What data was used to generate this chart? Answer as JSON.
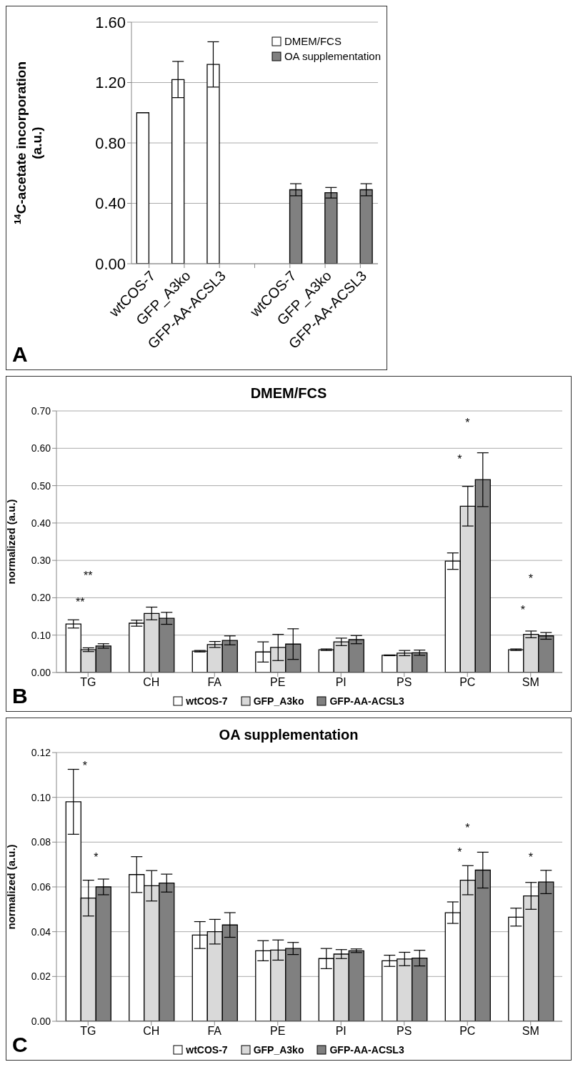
{
  "chart_data": [
    {
      "type": "bar",
      "ylabel": "$^{14}$C-acetate incorporation (a.u.)",
      "categories": [
        "wtCOS-7",
        "GFP_A3ko",
        "GFP-AA-ACSL3",
        null,
        "wtCOS-7",
        "GFP_A3ko",
        "GFP-AA-ACSL3"
      ],
      "series": [
        {
          "name": "DMEM/FCS",
          "color": "#ffffff",
          "values": [
            1.0,
            1.22,
            1.32,
            null,
            null,
            null,
            null
          ],
          "errors": [
            null,
            0.12,
            0.15,
            null,
            null,
            null,
            null
          ]
        },
        {
          "name": "OA supplementation",
          "color": "#808080",
          "values": [
            null,
            null,
            null,
            null,
            0.49,
            0.47,
            0.49
          ],
          "errors": [
            null,
            null,
            null,
            null,
            0.04,
            0.035,
            0.04
          ]
        }
      ],
      "ylim": [
        0,
        1.6
      ],
      "yticks": [
        {
          "value": 0,
          "label": "0.00"
        },
        {
          "value": 0.4,
          "label": "0.40"
        },
        {
          "value": 0.8,
          "label": "0.80"
        },
        {
          "value": 1.2,
          "label": "1.20"
        },
        {
          "value": 1.6,
          "label": "1.60"
        }
      ],
      "grid": "y",
      "legend": "top right",
      "annotations": [
        "A"
      ]
    },
    {
      "type": "bar",
      "title": "DMEM/FCS",
      "ylabel": "normalized (a.u.)",
      "categories": [
        "TG",
        "CH",
        "FA",
        "PE",
        "PI",
        "PS",
        "PC",
        "SM"
      ],
      "series": [
        {
          "name": "wtCOS-7",
          "color": "#ffffff",
          "values": [
            0.13,
            0.132,
            0.057,
            0.055,
            0.061,
            0.046,
            0.298,
            0.061
          ],
          "errors": [
            0.011,
            0.008,
            0.002,
            0.027,
            0.002,
            0.001,
            0.022,
            0.002
          ]
        },
        {
          "name": "GFP_A3ko",
          "color": "#d9d9d9",
          "values": [
            0.061,
            0.158,
            0.075,
            0.067,
            0.082,
            0.052,
            0.445,
            0.102
          ],
          "errors": [
            0.005,
            0.017,
            0.008,
            0.035,
            0.01,
            0.007,
            0.053,
            0.009
          ]
        },
        {
          "name": "GFP-AA-ACSL3",
          "color": "#808080",
          "values": [
            0.071,
            0.145,
            0.086,
            0.076,
            0.088,
            0.053,
            0.516,
            0.098
          ],
          "errors": [
            0.006,
            0.016,
            0.012,
            0.041,
            0.011,
            0.007,
            0.072,
            0.009
          ]
        }
      ],
      "ylim": [
        0,
        0.7
      ],
      "yticks": [
        {
          "value": 0,
          "label": "0.00"
        },
        {
          "value": 0.1,
          "label": "0.10"
        },
        {
          "value": 0.2,
          "label": "0.20"
        },
        {
          "value": 0.3,
          "label": "0.30"
        },
        {
          "value": 0.4,
          "label": "0.40"
        },
        {
          "value": 0.5,
          "label": "0.50"
        },
        {
          "value": 0.6,
          "label": "0.60"
        },
        {
          "value": 0.7,
          "label": "0.70"
        }
      ],
      "grid": "y",
      "legend": "bottom",
      "annotations": [
        "B",
        "**",
        "**",
        "*",
        "*",
        "*",
        "*"
      ]
    },
    {
      "type": "bar",
      "title": "OA supplementation",
      "ylabel": "normalized (a.u.)",
      "categories": [
        "TG",
        "CH",
        "FA",
        "PE",
        "PI",
        "PS",
        "PC",
        "SM"
      ],
      "series": [
        {
          "name": "wtCOS-7",
          "color": "#ffffff",
          "values": [
            0.098,
            0.0655,
            0.0385,
            0.0315,
            0.028,
            0.027,
            0.0485,
            0.0465
          ],
          "errors": [
            0.0145,
            0.008,
            0.006,
            0.0045,
            0.0045,
            0.0025,
            0.0048,
            0.004
          ]
        },
        {
          "name": "GFP_A3ko",
          "color": "#d9d9d9",
          "values": [
            0.055,
            0.0605,
            0.04,
            0.0318,
            0.03,
            0.0278,
            0.063,
            0.056
          ],
          "errors": [
            0.008,
            0.0068,
            0.0055,
            0.0045,
            0.002,
            0.003,
            0.0065,
            0.006
          ]
        },
        {
          "name": "GFP-AA-ACSL3",
          "color": "#808080",
          "values": [
            0.06,
            0.0617,
            0.043,
            0.0325,
            0.0315,
            0.0282,
            0.0675,
            0.0622
          ],
          "errors": [
            0.0035,
            0.004,
            0.0055,
            0.0027,
            0.0008,
            0.0035,
            0.008,
            0.0052
          ]
        }
      ],
      "ylim": [
        0,
        0.12
      ],
      "yticks": [
        {
          "value": 0,
          "label": "0.00"
        },
        {
          "value": 0.02,
          "label": "0.02"
        },
        {
          "value": 0.04,
          "label": "0.04"
        },
        {
          "value": 0.06,
          "label": "0.06"
        },
        {
          "value": 0.08,
          "label": "0.08"
        },
        {
          "value": 0.1,
          "label": "0.10"
        },
        {
          "value": 0.12,
          "label": "0.12"
        }
      ],
      "grid": "y",
      "legend": "bottom",
      "annotations": [
        "C",
        "*",
        "*",
        "*",
        "*",
        "*"
      ]
    }
  ]
}
